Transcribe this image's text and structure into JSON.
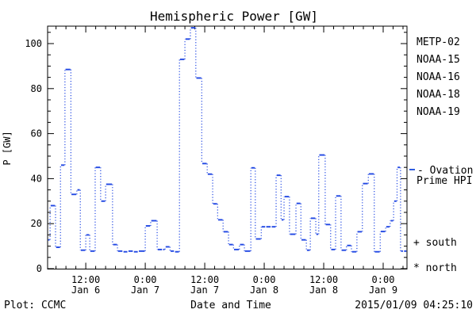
{
  "title": "Hemispheric Power [GW]",
  "axes": {
    "ylabel": "P [GW]",
    "xlabel": "Date and Time",
    "y_tick_labels": [
      "0",
      "20",
      "40",
      "60",
      "80",
      "100"
    ],
    "x_tick_labels": [
      {
        "time": "12:00",
        "date": "Jan 6"
      },
      {
        "time": "0:00",
        "date": "Jan 7"
      },
      {
        "time": "12:00",
        "date": "Jan 7"
      },
      {
        "time": "0:00",
        "date": "Jan 8"
      },
      {
        "time": "12:00",
        "date": "Jan 8"
      },
      {
        "time": "0:00",
        "date": "Jan 9"
      }
    ]
  },
  "legend": {
    "satellites": [
      {
        "label": "METP-02",
        "color": "#000000"
      },
      {
        "label": "NOAA-15",
        "color": "#1d2fe3"
      },
      {
        "label": "NOAA-16",
        "color": "#38b8f0"
      },
      {
        "label": "NOAA-18",
        "color": "#5fe392"
      },
      {
        "label": "NOAA-19",
        "color": "#ffa228"
      }
    ],
    "line_label_line1": "- Ovation",
    "line_label_line2": "Prime HPI",
    "line_color": "#2e5ce0",
    "south_marker": "+ south",
    "north_marker": "* north"
  },
  "footer": {
    "plot_credit": "Plot: CCMC",
    "xlabel": "Date and Time",
    "timestamp": "2015/01/09 04:25:10"
  },
  "chart_data": {
    "type": "line",
    "title": "Hemispheric Power [GW]",
    "xlabel": "Date and Time",
    "ylabel": "P [GW]",
    "style": "step-after; horizontal dash markers with dotted vertical connectors",
    "grid": false,
    "x_unit": "hours since 2015-01-06 00:00 UT",
    "xlim": [
      4.3,
      76.8
    ],
    "ylim": [
      0,
      107.8
    ],
    "y_major_ticks": [
      0,
      20,
      40,
      60,
      80,
      100
    ],
    "y_minor_step": 5,
    "x_major_ticks": [
      12,
      24,
      36,
      48,
      60,
      72
    ],
    "x_major_labels": [
      "12:00 Jan 6",
      "0:00 Jan 7",
      "12:00 Jan 7",
      "0:00 Jan 8",
      "12:00 Jan 8",
      "0:00 Jan 9"
    ],
    "x_minor_step": 2,
    "legend_position": "right",
    "series": [
      {
        "name": "Ovation Prime HPI (NOAA-15)",
        "color": "#2047e3",
        "points": [
          [
            4.3,
            12.8
          ],
          [
            4.8,
            28.0
          ],
          [
            5.9,
            9.5
          ],
          [
            6.9,
            46.0
          ],
          [
            7.8,
            88.5
          ],
          [
            9.0,
            33.0
          ],
          [
            10.2,
            35.0
          ],
          [
            10.9,
            8.2
          ],
          [
            12.0,
            15.0
          ],
          [
            12.8,
            7.8
          ],
          [
            13.9,
            45.0
          ],
          [
            15.0,
            30.0
          ],
          [
            16.0,
            37.5
          ],
          [
            17.4,
            10.7
          ],
          [
            18.4,
            7.8
          ],
          [
            19.5,
            7.5
          ],
          [
            20.5,
            7.8
          ],
          [
            21.6,
            7.5
          ],
          [
            22.6,
            7.8
          ],
          [
            24.0,
            19.0
          ],
          [
            25.1,
            21.3
          ],
          [
            26.4,
            8.5
          ],
          [
            27.5,
            8.5
          ],
          [
            28.0,
            9.7
          ],
          [
            29.0,
            7.8
          ],
          [
            29.9,
            7.5
          ],
          [
            30.9,
            93.0
          ],
          [
            32.0,
            102.0
          ],
          [
            33.1,
            107.0
          ],
          [
            34.2,
            84.7
          ],
          [
            35.4,
            46.7
          ],
          [
            36.5,
            42.0
          ],
          [
            37.6,
            28.8
          ],
          [
            38.6,
            21.7
          ],
          [
            39.7,
            16.4
          ],
          [
            40.8,
            10.7
          ],
          [
            41.8,
            8.5
          ],
          [
            43.0,
            10.7
          ],
          [
            44.0,
            7.8
          ],
          [
            45.3,
            44.8
          ],
          [
            46.2,
            13.2
          ],
          [
            47.4,
            18.6
          ],
          [
            48.3,
            18.6
          ],
          [
            49.4,
            18.6
          ],
          [
            50.4,
            41.5
          ],
          [
            51.4,
            21.7
          ],
          [
            52.0,
            32.0
          ],
          [
            53.1,
            15.3
          ],
          [
            54.4,
            29.0
          ],
          [
            55.4,
            12.8
          ],
          [
            56.5,
            8.2
          ],
          [
            57.3,
            22.4
          ],
          [
            58.4,
            15.3
          ],
          [
            59.0,
            50.5
          ],
          [
            60.3,
            19.6
          ],
          [
            61.4,
            8.5
          ],
          [
            62.4,
            32.3
          ],
          [
            63.5,
            8.2
          ],
          [
            64.6,
            10.3
          ],
          [
            65.6,
            7.5
          ],
          [
            66.7,
            16.4
          ],
          [
            67.8,
            37.8
          ],
          [
            69.0,
            42.1
          ],
          [
            70.2,
            7.5
          ],
          [
            71.4,
            16.5
          ],
          [
            72.5,
            18.6
          ],
          [
            73.4,
            21.3
          ],
          [
            74.1,
            30.0
          ],
          [
            74.8,
            45.0
          ],
          [
            75.5,
            7.8
          ],
          [
            76.1,
            7.8
          ]
        ]
      }
    ]
  }
}
